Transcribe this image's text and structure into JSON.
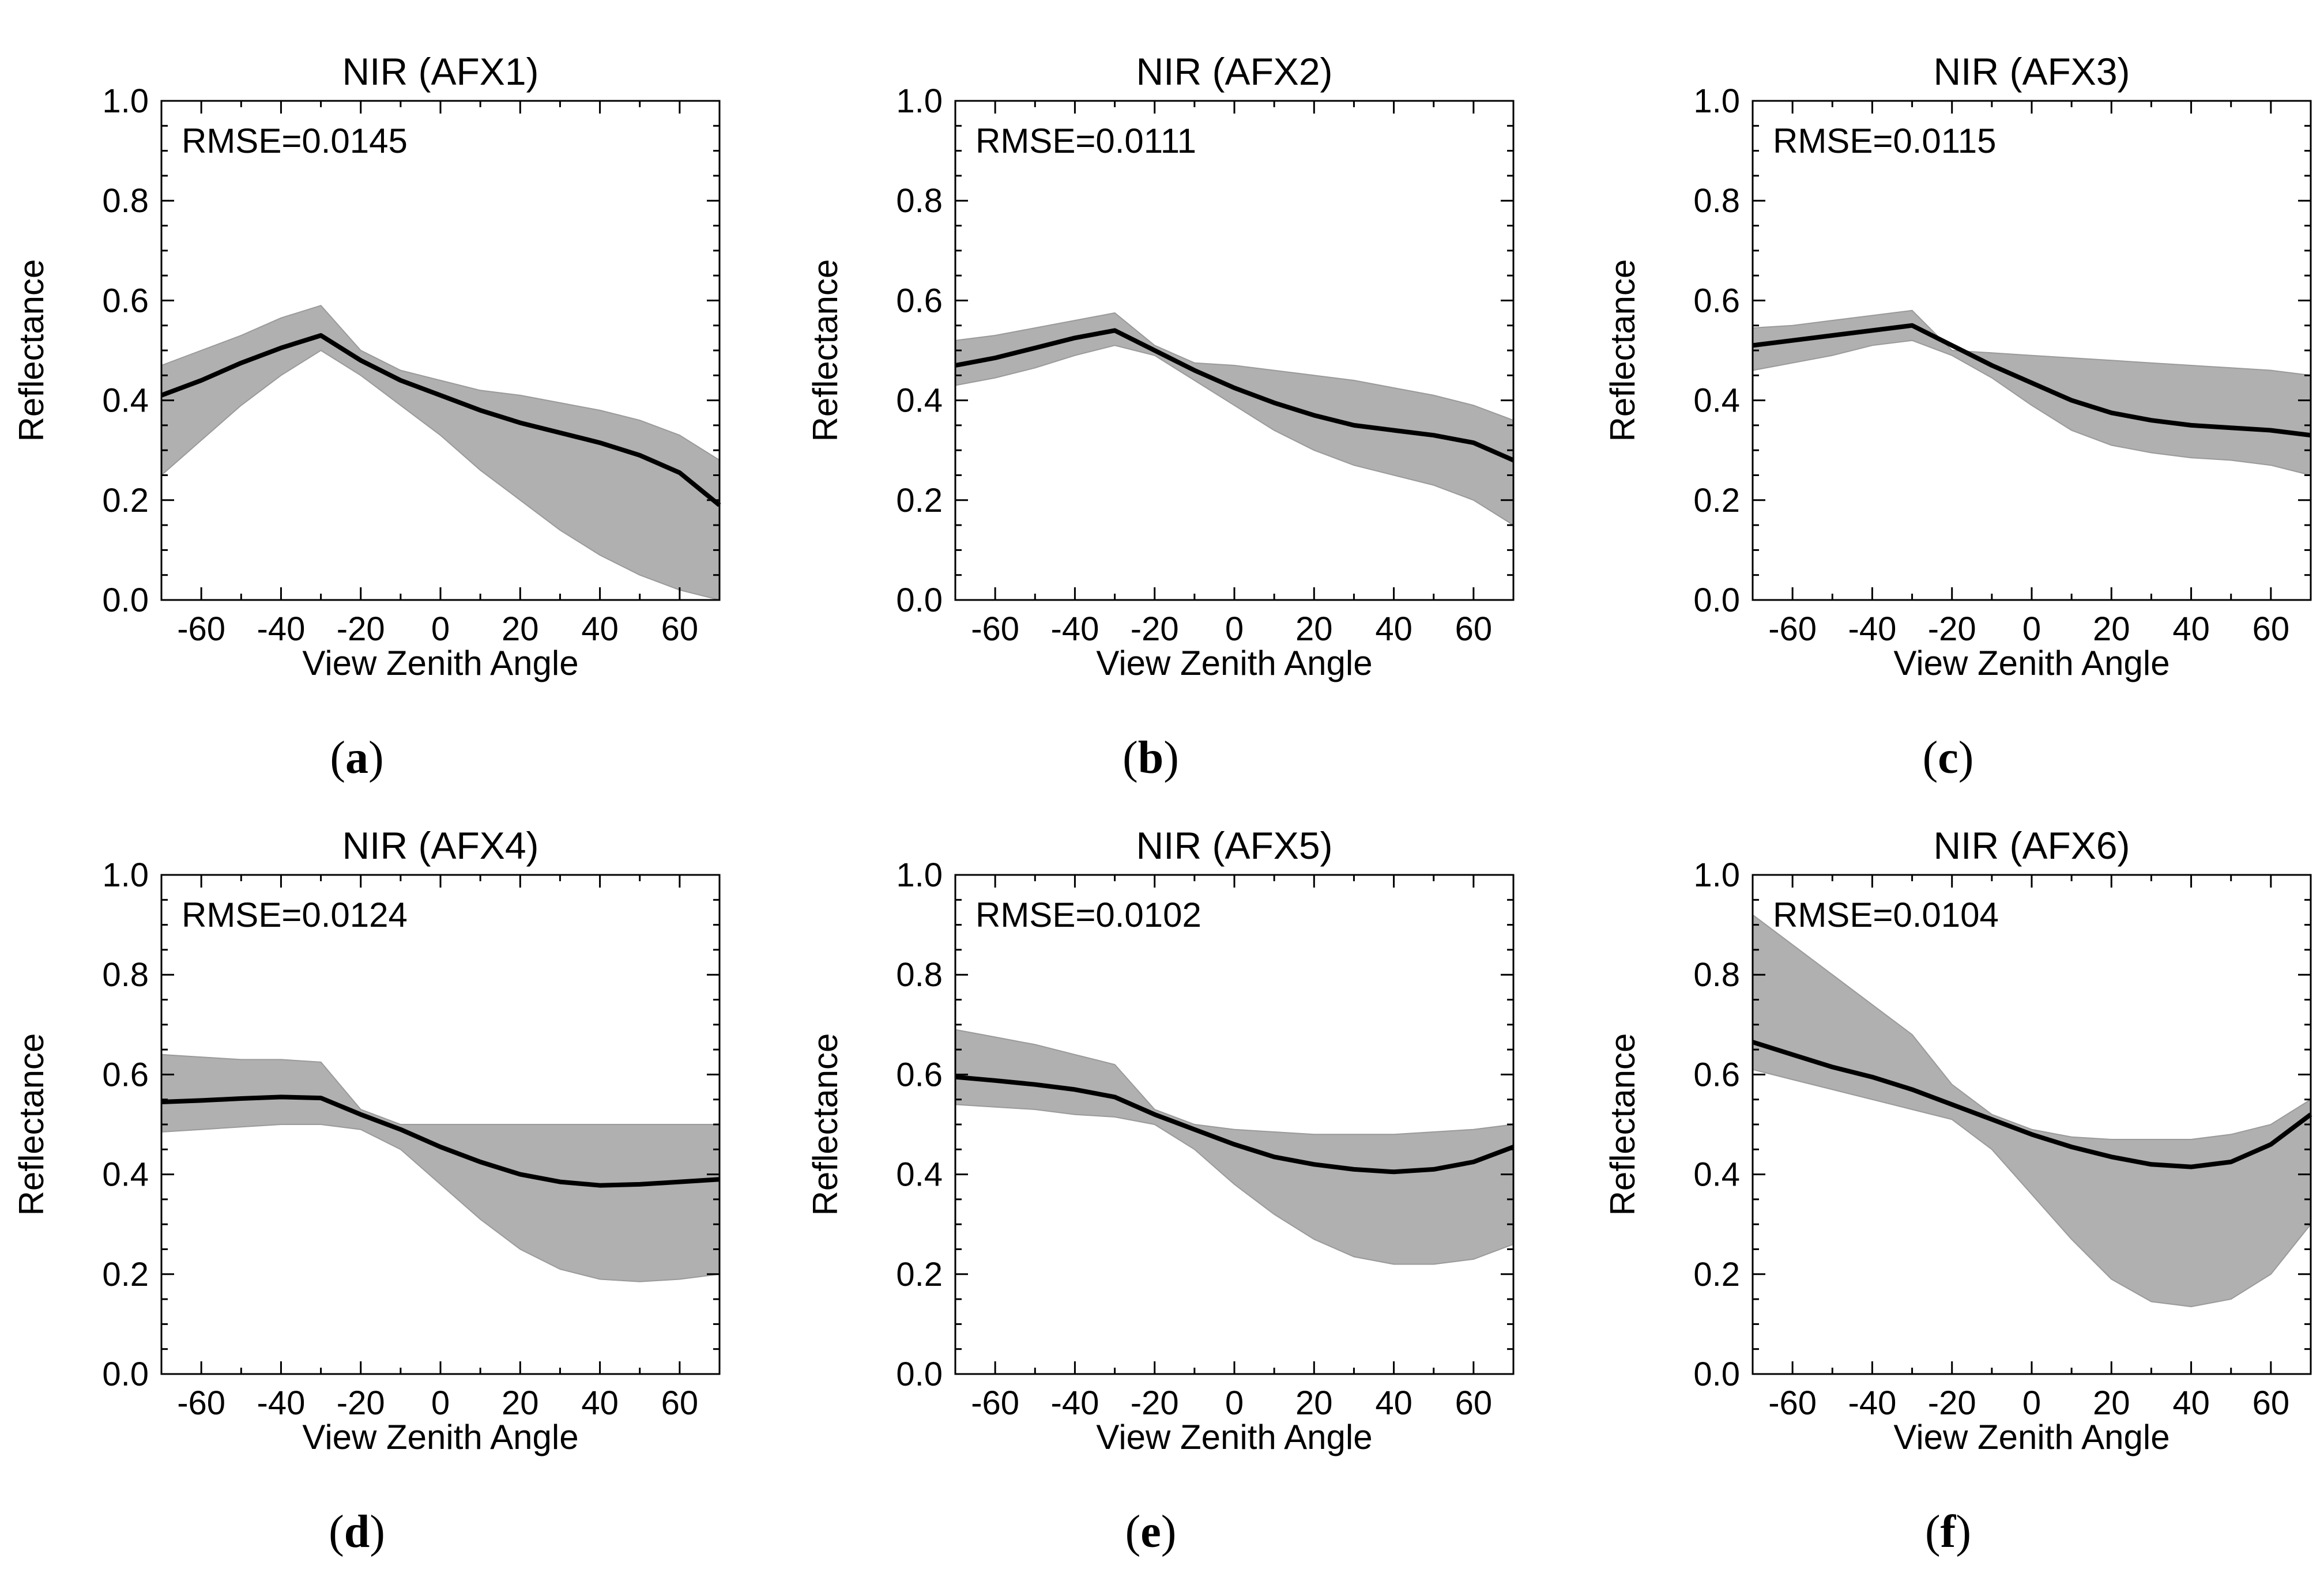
{
  "chart_data": [
    {
      "type": "line",
      "title": "NIR (AFX1)",
      "annotation": "RMSE=0.0145",
      "panel_label": "a",
      "xlabel": "View Zenith Angle",
      "ylabel": "Reflectance",
      "xlim": [
        -70,
        70
      ],
      "ylim": [
        0.0,
        1.0
      ],
      "xticks": [
        -60,
        -40,
        -20,
        0,
        20,
        40,
        60
      ],
      "xtick_labels": [
        "-60",
        "-40",
        "-20",
        "0",
        "20",
        "40",
        "60"
      ],
      "yticks": [
        0.0,
        0.2,
        0.4,
        0.6,
        0.8,
        1.0
      ],
      "ytick_labels": [
        "0.0",
        "0.2",
        "0.4",
        "0.6",
        "0.8",
        "1.0"
      ],
      "colors": {
        "mean": "#000000",
        "ensemble": "#b0b0b0"
      },
      "series": [
        {
          "name": "mean",
          "x": [
            -70,
            -60,
            -50,
            -40,
            -30,
            -20,
            -10,
            0,
            10,
            20,
            30,
            40,
            50,
            60,
            70
          ],
          "y": [
            0.41,
            0.44,
            0.475,
            0.505,
            0.53,
            0.48,
            0.44,
            0.41,
            0.38,
            0.355,
            0.335,
            0.315,
            0.29,
            0.255,
            0.19
          ]
        },
        {
          "name": "ensemble_upper",
          "x": [
            -70,
            -60,
            -50,
            -40,
            -30,
            -20,
            -10,
            0,
            10,
            20,
            30,
            40,
            50,
            60,
            70
          ],
          "y": [
            0.47,
            0.5,
            0.53,
            0.565,
            0.59,
            0.5,
            0.46,
            0.44,
            0.42,
            0.41,
            0.395,
            0.38,
            0.36,
            0.33,
            0.28
          ]
        },
        {
          "name": "ensemble_lower",
          "x": [
            -70,
            -60,
            -50,
            -40,
            -30,
            -20,
            -10,
            0,
            10,
            20,
            30,
            40,
            50,
            60,
            70
          ],
          "y": [
            0.25,
            0.32,
            0.39,
            0.45,
            0.5,
            0.45,
            0.39,
            0.33,
            0.26,
            0.2,
            0.14,
            0.09,
            0.05,
            0.02,
            0.0
          ]
        }
      ]
    },
    {
      "type": "line",
      "title": "NIR (AFX2)",
      "annotation": "RMSE=0.0111",
      "panel_label": "b",
      "xlabel": "View Zenith Angle",
      "ylabel": "Reflectance",
      "xlim": [
        -70,
        70
      ],
      "ylim": [
        0.0,
        1.0
      ],
      "xticks": [
        -60,
        -40,
        -20,
        0,
        20,
        40,
        60
      ],
      "xtick_labels": [
        "-60",
        "-40",
        "-20",
        "0",
        "20",
        "40",
        "60"
      ],
      "yticks": [
        0.0,
        0.2,
        0.4,
        0.6,
        0.8,
        1.0
      ],
      "ytick_labels": [
        "0.0",
        "0.2",
        "0.4",
        "0.6",
        "0.8",
        "1.0"
      ],
      "colors": {
        "mean": "#000000",
        "ensemble": "#b0b0b0"
      },
      "series": [
        {
          "name": "mean",
          "x": [
            -70,
            -60,
            -50,
            -40,
            -30,
            -20,
            -10,
            0,
            10,
            20,
            30,
            40,
            50,
            60,
            70
          ],
          "y": [
            0.47,
            0.485,
            0.505,
            0.525,
            0.54,
            0.5,
            0.46,
            0.425,
            0.395,
            0.37,
            0.35,
            0.34,
            0.33,
            0.315,
            0.28
          ]
        },
        {
          "name": "ensemble_upper",
          "x": [
            -70,
            -60,
            -50,
            -40,
            -30,
            -20,
            -10,
            0,
            10,
            20,
            30,
            40,
            50,
            60,
            70
          ],
          "y": [
            0.52,
            0.53,
            0.545,
            0.56,
            0.575,
            0.51,
            0.475,
            0.47,
            0.46,
            0.45,
            0.44,
            0.425,
            0.41,
            0.39,
            0.36
          ]
        },
        {
          "name": "ensemble_lower",
          "x": [
            -70,
            -60,
            -50,
            -40,
            -30,
            -20,
            -10,
            0,
            10,
            20,
            30,
            40,
            50,
            60,
            70
          ],
          "y": [
            0.43,
            0.445,
            0.465,
            0.49,
            0.51,
            0.49,
            0.44,
            0.39,
            0.34,
            0.3,
            0.27,
            0.25,
            0.23,
            0.2,
            0.15
          ]
        }
      ]
    },
    {
      "type": "line",
      "title": "NIR (AFX3)",
      "annotation": "RMSE=0.0115",
      "panel_label": "c",
      "xlabel": "View Zenith Angle",
      "ylabel": "Reflectance",
      "xlim": [
        -70,
        70
      ],
      "ylim": [
        0.0,
        1.0
      ],
      "xticks": [
        -60,
        -40,
        -20,
        0,
        20,
        40,
        60
      ],
      "xtick_labels": [
        "-60",
        "-40",
        "-20",
        "0",
        "20",
        "40",
        "60"
      ],
      "yticks": [
        0.0,
        0.2,
        0.4,
        0.6,
        0.8,
        1.0
      ],
      "ytick_labels": [
        "0.0",
        "0.2",
        "0.4",
        "0.6",
        "0.8",
        "1.0"
      ],
      "colors": {
        "mean": "#000000",
        "ensemble": "#b0b0b0"
      },
      "series": [
        {
          "name": "mean",
          "x": [
            -70,
            -60,
            -50,
            -40,
            -30,
            -20,
            -10,
            0,
            10,
            20,
            30,
            40,
            50,
            60,
            70
          ],
          "y": [
            0.51,
            0.52,
            0.53,
            0.54,
            0.55,
            0.51,
            0.47,
            0.435,
            0.4,
            0.375,
            0.36,
            0.35,
            0.345,
            0.34,
            0.33
          ]
        },
        {
          "name": "ensemble_upper",
          "x": [
            -70,
            -60,
            -50,
            -40,
            -30,
            -20,
            -10,
            0,
            10,
            20,
            30,
            40,
            50,
            60,
            70
          ],
          "y": [
            0.545,
            0.55,
            0.56,
            0.57,
            0.58,
            0.5,
            0.495,
            0.49,
            0.485,
            0.48,
            0.475,
            0.47,
            0.465,
            0.46,
            0.45
          ]
        },
        {
          "name": "ensemble_lower",
          "x": [
            -70,
            -60,
            -50,
            -40,
            -30,
            -20,
            -10,
            0,
            10,
            20,
            30,
            40,
            50,
            60,
            70
          ],
          "y": [
            0.46,
            0.475,
            0.49,
            0.51,
            0.52,
            0.49,
            0.445,
            0.39,
            0.34,
            0.31,
            0.295,
            0.285,
            0.28,
            0.27,
            0.25
          ]
        }
      ]
    },
    {
      "type": "line",
      "title": "NIR (AFX4)",
      "annotation": "RMSE=0.0124",
      "panel_label": "d",
      "xlabel": "View Zenith Angle",
      "ylabel": "Reflectance",
      "xlim": [
        -70,
        70
      ],
      "ylim": [
        0.0,
        1.0
      ],
      "xticks": [
        -60,
        -40,
        -20,
        0,
        20,
        40,
        60
      ],
      "xtick_labels": [
        "-60",
        "-40",
        "-20",
        "0",
        "20",
        "40",
        "60"
      ],
      "yticks": [
        0.0,
        0.2,
        0.4,
        0.6,
        0.8,
        1.0
      ],
      "ytick_labels": [
        "0.0",
        "0.2",
        "0.4",
        "0.6",
        "0.8",
        "1.0"
      ],
      "colors": {
        "mean": "#000000",
        "ensemble": "#b0b0b0"
      },
      "series": [
        {
          "name": "mean",
          "x": [
            -70,
            -60,
            -50,
            -40,
            -30,
            -20,
            -10,
            0,
            10,
            20,
            30,
            40,
            50,
            60,
            70
          ],
          "y": [
            0.545,
            0.548,
            0.552,
            0.555,
            0.553,
            0.52,
            0.49,
            0.455,
            0.425,
            0.4,
            0.385,
            0.378,
            0.38,
            0.385,
            0.39
          ]
        },
        {
          "name": "ensemble_upper",
          "x": [
            -70,
            -60,
            -50,
            -40,
            -30,
            -20,
            -10,
            0,
            10,
            20,
            30,
            40,
            50,
            60,
            70
          ],
          "y": [
            0.64,
            0.635,
            0.63,
            0.63,
            0.625,
            0.53,
            0.5,
            0.5,
            0.5,
            0.5,
            0.5,
            0.5,
            0.5,
            0.5,
            0.5
          ]
        },
        {
          "name": "ensemble_lower",
          "x": [
            -70,
            -60,
            -50,
            -40,
            -30,
            -20,
            -10,
            0,
            10,
            20,
            30,
            40,
            50,
            60,
            70
          ],
          "y": [
            0.485,
            0.49,
            0.495,
            0.5,
            0.5,
            0.49,
            0.45,
            0.38,
            0.31,
            0.25,
            0.21,
            0.19,
            0.185,
            0.19,
            0.2
          ]
        }
      ]
    },
    {
      "type": "line",
      "title": "NIR (AFX5)",
      "annotation": "RMSE=0.0102",
      "panel_label": "e",
      "xlabel": "View Zenith Angle",
      "ylabel": "Reflectance",
      "xlim": [
        -70,
        70
      ],
      "ylim": [
        0.0,
        1.0
      ],
      "xticks": [
        -60,
        -40,
        -20,
        0,
        20,
        40,
        60
      ],
      "xtick_labels": [
        "-60",
        "-40",
        "-20",
        "0",
        "20",
        "40",
        "60"
      ],
      "yticks": [
        0.0,
        0.2,
        0.4,
        0.6,
        0.8,
        1.0
      ],
      "ytick_labels": [
        "0.0",
        "0.2",
        "0.4",
        "0.6",
        "0.8",
        "1.0"
      ],
      "colors": {
        "mean": "#000000",
        "ensemble": "#b0b0b0"
      },
      "series": [
        {
          "name": "mean",
          "x": [
            -70,
            -60,
            -50,
            -40,
            -30,
            -20,
            -10,
            0,
            10,
            20,
            30,
            40,
            50,
            60,
            70
          ],
          "y": [
            0.595,
            0.588,
            0.58,
            0.57,
            0.555,
            0.52,
            0.49,
            0.46,
            0.435,
            0.42,
            0.41,
            0.405,
            0.41,
            0.425,
            0.455
          ]
        },
        {
          "name": "ensemble_upper",
          "x": [
            -70,
            -60,
            -50,
            -40,
            -30,
            -20,
            -10,
            0,
            10,
            20,
            30,
            40,
            50,
            60,
            70
          ],
          "y": [
            0.69,
            0.675,
            0.66,
            0.64,
            0.62,
            0.53,
            0.5,
            0.49,
            0.485,
            0.48,
            0.48,
            0.48,
            0.485,
            0.49,
            0.5
          ]
        },
        {
          "name": "ensemble_lower",
          "x": [
            -70,
            -60,
            -50,
            -40,
            -30,
            -20,
            -10,
            0,
            10,
            20,
            30,
            40,
            50,
            60,
            70
          ],
          "y": [
            0.54,
            0.535,
            0.53,
            0.52,
            0.515,
            0.5,
            0.45,
            0.38,
            0.32,
            0.27,
            0.235,
            0.22,
            0.22,
            0.23,
            0.26
          ]
        }
      ]
    },
    {
      "type": "line",
      "title": "NIR (AFX6)",
      "annotation": "RMSE=0.0104",
      "panel_label": "f",
      "xlabel": "View Zenith Angle",
      "ylabel": "Reflectance",
      "xlim": [
        -70,
        70
      ],
      "ylim": [
        0.0,
        1.0
      ],
      "xticks": [
        -60,
        -40,
        -20,
        0,
        20,
        40,
        60
      ],
      "xtick_labels": [
        "-60",
        "-40",
        "-20",
        "0",
        "20",
        "40",
        "60"
      ],
      "yticks": [
        0.0,
        0.2,
        0.4,
        0.6,
        0.8,
        1.0
      ],
      "ytick_labels": [
        "0.0",
        "0.2",
        "0.4",
        "0.6",
        "0.8",
        "1.0"
      ],
      "colors": {
        "mean": "#000000",
        "ensemble": "#b0b0b0"
      },
      "series": [
        {
          "name": "mean",
          "x": [
            -70,
            -60,
            -50,
            -40,
            -30,
            -20,
            -10,
            0,
            10,
            20,
            30,
            40,
            50,
            60,
            70
          ],
          "y": [
            0.665,
            0.64,
            0.615,
            0.595,
            0.57,
            0.54,
            0.51,
            0.48,
            0.455,
            0.435,
            0.42,
            0.415,
            0.425,
            0.46,
            0.52
          ]
        },
        {
          "name": "ensemble_upper",
          "x": [
            -70,
            -60,
            -50,
            -40,
            -30,
            -20,
            -10,
            0,
            10,
            20,
            30,
            40,
            50,
            60,
            70
          ],
          "y": [
            0.92,
            0.86,
            0.8,
            0.74,
            0.68,
            0.58,
            0.52,
            0.49,
            0.475,
            0.47,
            0.47,
            0.47,
            0.48,
            0.5,
            0.55
          ]
        },
        {
          "name": "ensemble_lower",
          "x": [
            -70,
            -60,
            -50,
            -40,
            -30,
            -20,
            -10,
            0,
            10,
            20,
            30,
            40,
            50,
            60,
            70
          ],
          "y": [
            0.61,
            0.59,
            0.57,
            0.55,
            0.53,
            0.51,
            0.45,
            0.36,
            0.27,
            0.19,
            0.145,
            0.135,
            0.15,
            0.2,
            0.3
          ]
        }
      ]
    }
  ]
}
